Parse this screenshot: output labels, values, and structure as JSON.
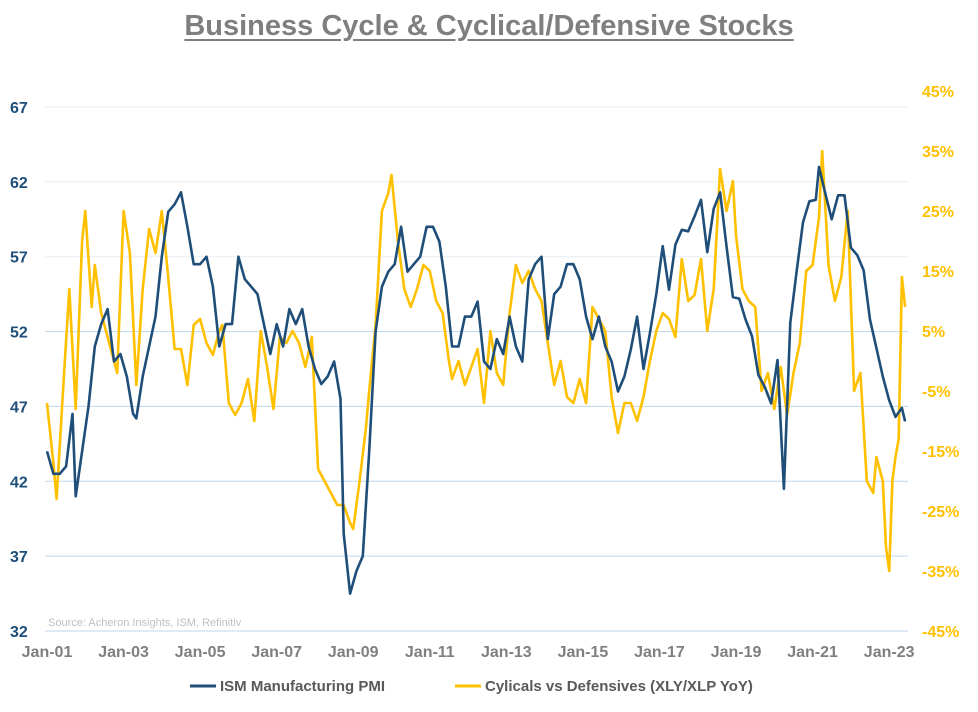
{
  "chart_data": {
    "type": "line",
    "title": "Business Cycle & Cyclical/Defensive Stocks",
    "source": "Source: Acheron Insights, ISM, Refinitiv",
    "x_tick_labels": [
      "Jan-01",
      "Jan-03",
      "Jan-05",
      "Jan-07",
      "Jan-09",
      "Jan-11",
      "Jan-13",
      "Jan-15",
      "Jan-17",
      "Jan-19",
      "Jan-21",
      "Jan-23"
    ],
    "y_left": {
      "ticks": [
        67,
        62,
        57,
        52,
        47,
        42,
        37,
        32
      ],
      "range": [
        32,
        67
      ],
      "color": "#1f4e79"
    },
    "y_right": {
      "ticks": [
        "45%",
        "35%",
        "25%",
        "15%",
        "5%",
        "-5%",
        "-15%",
        "-25%",
        "-35%",
        "-45%"
      ],
      "range": [
        -45,
        45
      ],
      "color": "#ffc000"
    },
    "grid": "horizontal",
    "legend_position": "bottom",
    "series": [
      {
        "name": "ISM Manufacturing PMI",
        "axis": "left",
        "color": "#1f4e79",
        "points": [
          [
            "2001-01",
            44
          ],
          [
            "2001-03",
            42.5
          ],
          [
            "2001-05",
            42.5
          ],
          [
            "2001-07",
            43
          ],
          [
            "2001-09",
            46.5
          ],
          [
            "2001-10",
            41
          ],
          [
            "2001-12",
            44
          ],
          [
            "2002-02",
            47
          ],
          [
            "2002-04",
            51
          ],
          [
            "2002-06",
            52.5
          ],
          [
            "2002-08",
            53.5
          ],
          [
            "2002-10",
            50
          ],
          [
            "2002-12",
            50.5
          ],
          [
            "2003-02",
            49
          ],
          [
            "2003-04",
            46.5
          ],
          [
            "2003-05",
            46.2
          ],
          [
            "2003-07",
            49
          ],
          [
            "2003-09",
            51
          ],
          [
            "2003-11",
            53
          ],
          [
            "2004-01",
            57
          ],
          [
            "2004-03",
            60
          ],
          [
            "2004-05",
            60.5
          ],
          [
            "2004-07",
            61.3
          ],
          [
            "2004-09",
            59
          ],
          [
            "2004-11",
            56.5
          ],
          [
            "2005-01",
            56.5
          ],
          [
            "2005-03",
            57
          ],
          [
            "2005-05",
            55
          ],
          [
            "2005-07",
            51
          ],
          [
            "2005-09",
            52.5
          ],
          [
            "2005-11",
            52.5
          ],
          [
            "2006-01",
            57
          ],
          [
            "2006-03",
            55.5
          ],
          [
            "2006-05",
            55
          ],
          [
            "2006-07",
            54.5
          ],
          [
            "2006-09",
            52.5
          ],
          [
            "2006-11",
            50.5
          ],
          [
            "2007-01",
            52.5
          ],
          [
            "2007-03",
            51
          ],
          [
            "2007-05",
            53.5
          ],
          [
            "2007-07",
            52.5
          ],
          [
            "2007-09",
            53.5
          ],
          [
            "2007-11",
            51
          ],
          [
            "2008-01",
            49.5
          ],
          [
            "2008-03",
            48.5
          ],
          [
            "2008-05",
            49
          ],
          [
            "2008-07",
            50
          ],
          [
            "2008-09",
            47.5
          ],
          [
            "2008-10",
            38.5
          ],
          [
            "2008-12",
            34.5
          ],
          [
            "2009-02",
            36
          ],
          [
            "2009-04",
            37
          ],
          [
            "2009-06",
            44
          ],
          [
            "2009-08",
            52
          ],
          [
            "2009-10",
            55
          ],
          [
            "2009-12",
            56
          ],
          [
            "2010-02",
            56.5
          ],
          [
            "2010-04",
            59
          ],
          [
            "2010-06",
            56
          ],
          [
            "2010-08",
            56.5
          ],
          [
            "2010-10",
            57
          ],
          [
            "2010-12",
            59
          ],
          [
            "2011-02",
            59
          ],
          [
            "2011-04",
            58
          ],
          [
            "2011-06",
            55
          ],
          [
            "2011-08",
            51
          ],
          [
            "2011-10",
            51
          ],
          [
            "2011-12",
            53
          ],
          [
            "2012-02",
            53
          ],
          [
            "2012-04",
            54
          ],
          [
            "2012-06",
            50
          ],
          [
            "2012-08",
            49.5
          ],
          [
            "2012-10",
            51.5
          ],
          [
            "2012-12",
            50.5
          ],
          [
            "2013-02",
            53
          ],
          [
            "2013-04",
            51
          ],
          [
            "2013-06",
            50
          ],
          [
            "2013-08",
            55.5
          ],
          [
            "2013-10",
            56.5
          ],
          [
            "2013-12",
            57
          ],
          [
            "2014-02",
            51.5
          ],
          [
            "2014-04",
            54.5
          ],
          [
            "2014-06",
            55
          ],
          [
            "2014-08",
            56.5
          ],
          [
            "2014-10",
            56.5
          ],
          [
            "2014-12",
            55.5
          ],
          [
            "2015-02",
            53
          ],
          [
            "2015-04",
            51.5
          ],
          [
            "2015-06",
            53
          ],
          [
            "2015-08",
            51
          ],
          [
            "2015-10",
            50
          ],
          [
            "2015-12",
            48
          ],
          [
            "2016-02",
            49
          ],
          [
            "2016-04",
            50.8
          ],
          [
            "2016-06",
            53
          ],
          [
            "2016-08",
            49.5
          ],
          [
            "2016-10",
            51.9
          ],
          [
            "2016-12",
            54.5
          ],
          [
            "2017-02",
            57.7
          ],
          [
            "2017-04",
            54.8
          ],
          [
            "2017-06",
            57.8
          ],
          [
            "2017-08",
            58.8
          ],
          [
            "2017-10",
            58.7
          ],
          [
            "2017-12",
            59.7
          ],
          [
            "2018-02",
            60.8
          ],
          [
            "2018-04",
            57.3
          ],
          [
            "2018-06",
            60.2
          ],
          [
            "2018-08",
            61.3
          ],
          [
            "2018-10",
            57.7
          ],
          [
            "2018-12",
            54.3
          ],
          [
            "2019-02",
            54.2
          ],
          [
            "2019-04",
            52.8
          ],
          [
            "2019-06",
            51.7
          ],
          [
            "2019-08",
            49.1
          ],
          [
            "2019-10",
            48.3
          ],
          [
            "2019-12",
            47.2
          ],
          [
            "2020-02",
            50.1
          ],
          [
            "2020-04",
            41.5
          ],
          [
            "2020-06",
            52.6
          ],
          [
            "2020-08",
            56
          ],
          [
            "2020-10",
            59.3
          ],
          [
            "2020-12",
            60.7
          ],
          [
            "2021-02",
            60.8
          ],
          [
            "2021-03",
            63
          ],
          [
            "2021-05",
            61.2
          ],
          [
            "2021-07",
            59.5
          ],
          [
            "2021-09",
            61.1
          ],
          [
            "2021-11",
            61.1
          ],
          [
            "2022-01",
            57.6
          ],
          [
            "2022-03",
            57.1
          ],
          [
            "2022-05",
            56.1
          ],
          [
            "2022-07",
            52.8
          ],
          [
            "2022-09",
            50.9
          ],
          [
            "2022-11",
            49
          ],
          [
            "2023-01",
            47.4
          ],
          [
            "2023-03",
            46.3
          ],
          [
            "2023-05",
            46.9
          ],
          [
            "2023-06",
            46.0
          ]
        ]
      },
      {
        "name": "Cylicals vs Defensives (XLY/XLP YoY)",
        "axis": "right",
        "color": "#ffc000",
        "points": [
          [
            "2001-01",
            -7
          ],
          [
            "2001-03",
            -17
          ],
          [
            "2001-04",
            -23
          ],
          [
            "2001-06",
            -5
          ],
          [
            "2001-08",
            12
          ],
          [
            "2001-10",
            -8
          ],
          [
            "2001-12",
            20
          ],
          [
            "2002-01",
            25
          ],
          [
            "2002-03",
            9
          ],
          [
            "2002-04",
            16
          ],
          [
            "2002-06",
            8
          ],
          [
            "2002-08",
            4
          ],
          [
            "2002-10",
            0
          ],
          [
            "2002-11",
            -2
          ],
          [
            "2003-01",
            25
          ],
          [
            "2003-03",
            18
          ],
          [
            "2003-05",
            -4
          ],
          [
            "2003-07",
            12
          ],
          [
            "2003-09",
            22
          ],
          [
            "2003-11",
            18
          ],
          [
            "2004-01",
            25
          ],
          [
            "2004-03",
            14
          ],
          [
            "2004-05",
            2
          ],
          [
            "2004-07",
            2
          ],
          [
            "2004-09",
            -4
          ],
          [
            "2004-11",
            6
          ],
          [
            "2005-01",
            7
          ],
          [
            "2005-03",
            3
          ],
          [
            "2005-05",
            1
          ],
          [
            "2005-07",
            5
          ],
          [
            "2005-08",
            6
          ],
          [
            "2005-10",
            -7
          ],
          [
            "2005-12",
            -9
          ],
          [
            "2006-02",
            -7
          ],
          [
            "2006-04",
            -3
          ],
          [
            "2006-06",
            -10
          ],
          [
            "2006-08",
            5
          ],
          [
            "2006-10",
            -1
          ],
          [
            "2006-12",
            -8
          ],
          [
            "2007-02",
            4
          ],
          [
            "2007-04",
            3
          ],
          [
            "2007-06",
            5
          ],
          [
            "2007-08",
            3
          ],
          [
            "2007-10",
            -1
          ],
          [
            "2007-12",
            4
          ],
          [
            "2008-02",
            -18
          ],
          [
            "2008-04",
            -20
          ],
          [
            "2008-06",
            -22
          ],
          [
            "2008-08",
            -24
          ],
          [
            "2008-10",
            -24
          ],
          [
            "2008-12",
            -27
          ],
          [
            "2009-01",
            -28
          ],
          [
            "2009-03",
            -20
          ],
          [
            "2009-05",
            -11
          ],
          [
            "2009-06",
            -5
          ],
          [
            "2009-08",
            6
          ],
          [
            "2009-10",
            25
          ],
          [
            "2009-12",
            28
          ],
          [
            "2010-01",
            31
          ],
          [
            "2010-03",
            20
          ],
          [
            "2010-05",
            12
          ],
          [
            "2010-07",
            9
          ],
          [
            "2010-09",
            12
          ],
          [
            "2010-11",
            16
          ],
          [
            "2011-01",
            15
          ],
          [
            "2011-03",
            10
          ],
          [
            "2011-05",
            8
          ],
          [
            "2011-07",
            0
          ],
          [
            "2011-08",
            -3
          ],
          [
            "2011-10",
            0
          ],
          [
            "2011-12",
            -4
          ],
          [
            "2012-02",
            -1
          ],
          [
            "2012-04",
            2
          ],
          [
            "2012-06",
            -7
          ],
          [
            "2012-08",
            5
          ],
          [
            "2012-10",
            -2
          ],
          [
            "2012-12",
            -4
          ],
          [
            "2013-02",
            8
          ],
          [
            "2013-04",
            16
          ],
          [
            "2013-06",
            13
          ],
          [
            "2013-08",
            15
          ],
          [
            "2013-10",
            12
          ],
          [
            "2013-12",
            10
          ],
          [
            "2014-02",
            3
          ],
          [
            "2014-04",
            -4
          ],
          [
            "2014-06",
            0
          ],
          [
            "2014-08",
            -6
          ],
          [
            "2014-10",
            -7
          ],
          [
            "2014-12",
            -3
          ],
          [
            "2015-02",
            -7
          ],
          [
            "2015-04",
            9
          ],
          [
            "2015-06",
            7
          ],
          [
            "2015-08",
            5
          ],
          [
            "2015-10",
            -6
          ],
          [
            "2015-12",
            -12
          ],
          [
            "2016-02",
            -7
          ],
          [
            "2016-04",
            -7
          ],
          [
            "2016-06",
            -10
          ],
          [
            "2016-08",
            -6
          ],
          [
            "2016-10",
            0
          ],
          [
            "2016-12",
            5
          ],
          [
            "2017-02",
            8
          ],
          [
            "2017-04",
            7
          ],
          [
            "2017-06",
            4
          ],
          [
            "2017-08",
            17
          ],
          [
            "2017-10",
            10
          ],
          [
            "2017-12",
            11
          ],
          [
            "2018-02",
            17
          ],
          [
            "2018-04",
            5
          ],
          [
            "2018-06",
            12
          ],
          [
            "2018-08",
            32
          ],
          [
            "2018-10",
            25
          ],
          [
            "2018-12",
            30
          ],
          [
            "2019-01",
            21
          ],
          [
            "2019-03",
            12
          ],
          [
            "2019-05",
            10
          ],
          [
            "2019-07",
            9
          ],
          [
            "2019-09",
            -5
          ],
          [
            "2019-11",
            -2
          ],
          [
            "2020-01",
            -8
          ],
          [
            "2020-03",
            -1
          ],
          [
            "2020-05",
            -9
          ],
          [
            "2020-07",
            -2
          ],
          [
            "2020-09",
            3
          ],
          [
            "2020-11",
            15
          ],
          [
            "2021-01",
            16
          ],
          [
            "2021-03",
            24
          ],
          [
            "2021-04",
            35
          ],
          [
            "2021-06",
            16
          ],
          [
            "2021-08",
            10
          ],
          [
            "2021-10",
            14
          ],
          [
            "2021-12",
            25
          ],
          [
            "2022-02",
            -5
          ],
          [
            "2022-04",
            -2
          ],
          [
            "2022-06",
            -20
          ],
          [
            "2022-08",
            -22
          ],
          [
            "2022-09",
            -16
          ],
          [
            "2022-11",
            -20
          ],
          [
            "2022-12",
            -31
          ],
          [
            "2023-01",
            -35
          ],
          [
            "2023-02",
            -20
          ],
          [
            "2023-03",
            -16
          ],
          [
            "2023-04",
            -13
          ],
          [
            "2023-05",
            14
          ],
          [
            "2023-06",
            9
          ]
        ]
      }
    ]
  }
}
